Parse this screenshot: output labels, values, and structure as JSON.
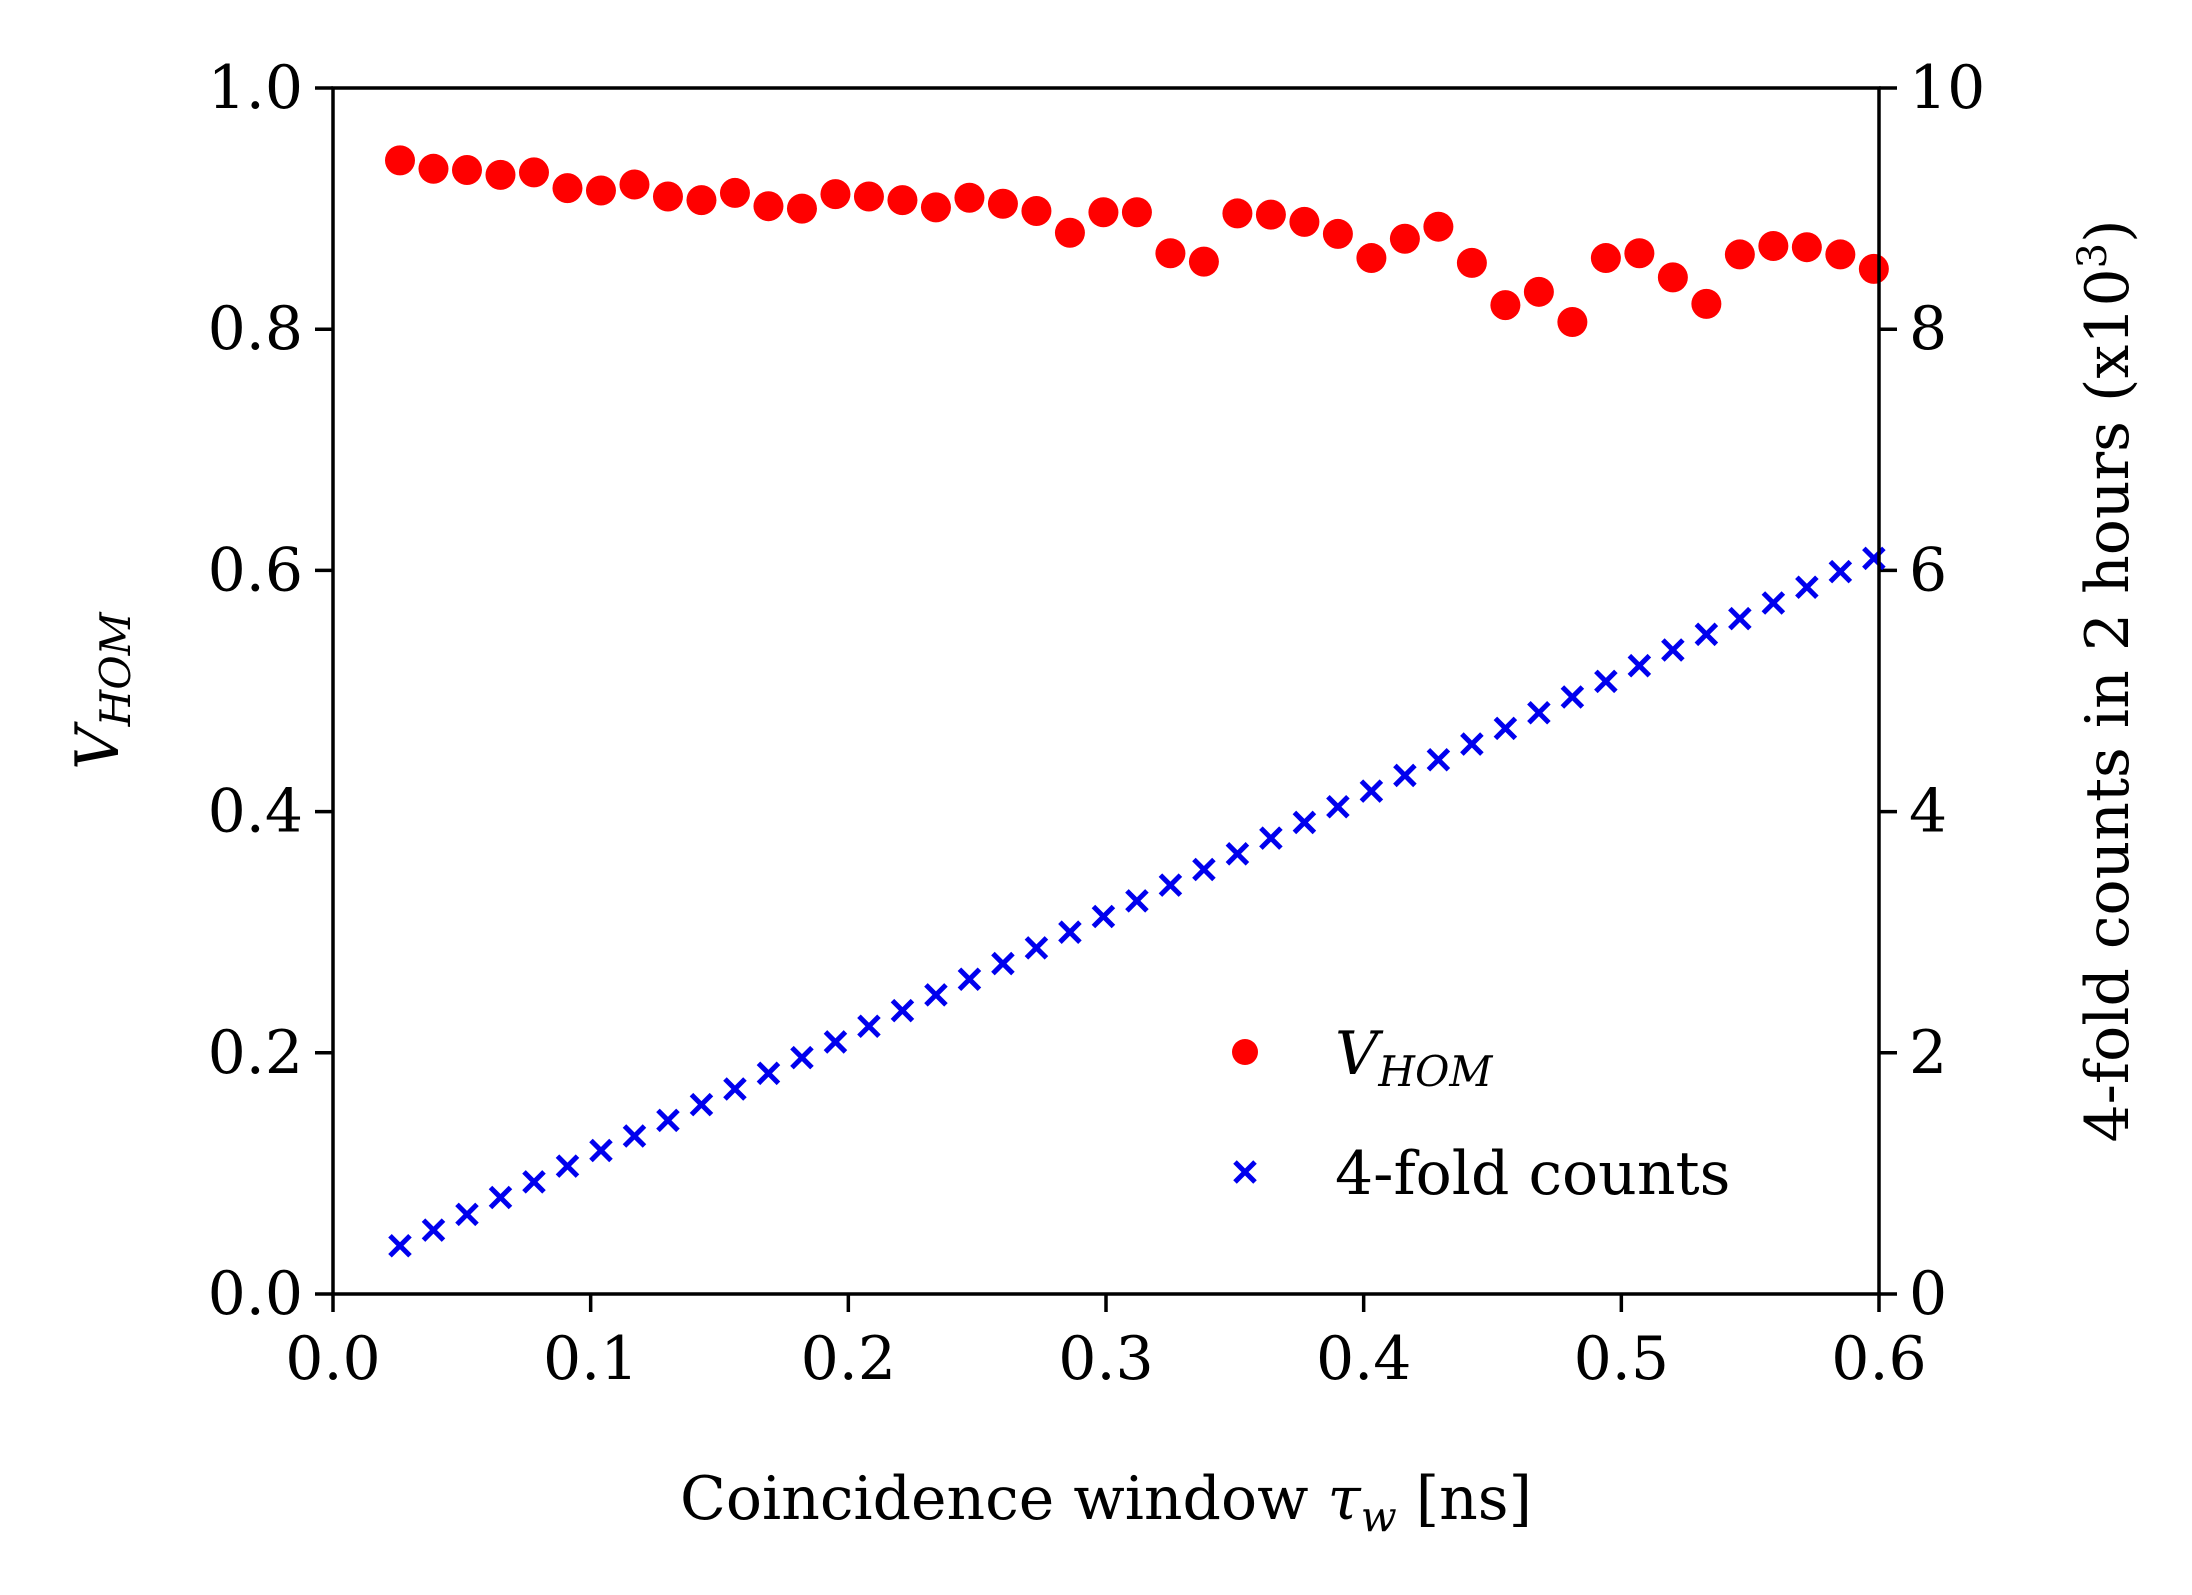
{
  "chart_data": {
    "type": "scatter",
    "xlabel": {
      "prefix": "Coincidence window ",
      "symbol": "τ",
      "subscript": "w",
      "suffix": " [ns]"
    },
    "ylabel_left": {
      "symbol": "V",
      "subscript": "HOM"
    },
    "ylabel_right": {
      "text": "4-fold counts in 2 hours (x10",
      "sup": "3",
      "close": ")"
    },
    "xlim": [
      0.0,
      0.6
    ],
    "ylim_left": [
      0.0,
      1.0
    ],
    "ylim_right": [
      0,
      10
    ],
    "x_ticks": [
      "0.0",
      "0.1",
      "0.2",
      "0.3",
      "0.4",
      "0.5",
      "0.6"
    ],
    "y_left_ticks": [
      "0.0",
      "0.2",
      "0.4",
      "0.6",
      "0.8",
      "1.0"
    ],
    "y_right_ticks": [
      "0",
      "2",
      "4",
      "6",
      "8",
      "10"
    ],
    "legend": {
      "position": "lower-right",
      "entries": [
        {
          "symbol": "V",
          "subscript": "HOM",
          "marker": "circle"
        },
        {
          "text": "4-fold counts",
          "marker": "x"
        }
      ]
    },
    "colors": {
      "vhom": "#ff0000",
      "counts": "#0000ee"
    },
    "series": [
      {
        "name": "V_HOM",
        "axis": "left",
        "x": [
          0.026,
          0.039,
          0.052,
          0.065,
          0.078,
          0.091,
          0.104,
          0.117,
          0.13,
          0.143,
          0.156,
          0.169,
          0.182,
          0.195,
          0.208,
          0.221,
          0.234,
          0.247,
          0.26,
          0.273,
          0.286,
          0.299,
          0.312,
          0.325,
          0.338,
          0.351,
          0.364,
          0.377,
          0.39,
          0.403,
          0.416,
          0.429,
          0.442,
          0.455,
          0.468,
          0.481,
          0.494,
          0.507,
          0.52,
          0.533,
          0.546,
          0.559,
          0.572,
          0.585,
          0.598
        ],
        "values": [
          0.94,
          0.933,
          0.932,
          0.928,
          0.93,
          0.917,
          0.915,
          0.92,
          0.91,
          0.907,
          0.913,
          0.902,
          0.9,
          0.912,
          0.91,
          0.907,
          0.901,
          0.909,
          0.904,
          0.898,
          0.88,
          0.897,
          0.897,
          0.863,
          0.856,
          0.896,
          0.895,
          0.889,
          0.879,
          0.859,
          0.875,
          0.885,
          0.855,
          0.82,
          0.831,
          0.806,
          0.859,
          0.863,
          0.843,
          0.821,
          0.862,
          0.869,
          0.868,
          0.862,
          0.85
        ]
      },
      {
        "name": "4-fold counts",
        "axis": "right",
        "x": [
          0.026,
          0.039,
          0.052,
          0.065,
          0.078,
          0.091,
          0.104,
          0.117,
          0.13,
          0.143,
          0.156,
          0.169,
          0.182,
          0.195,
          0.208,
          0.221,
          0.234,
          0.247,
          0.26,
          0.273,
          0.286,
          0.299,
          0.312,
          0.325,
          0.338,
          0.351,
          0.364,
          0.377,
          0.39,
          0.403,
          0.416,
          0.429,
          0.442,
          0.455,
          0.468,
          0.481,
          0.494,
          0.507,
          0.52,
          0.533,
          0.546,
          0.559,
          0.572,
          0.585,
          0.598
        ],
        "values": [
          0.4,
          0.53,
          0.66,
          0.8,
          0.93,
          1.06,
          1.19,
          1.31,
          1.44,
          1.57,
          1.7,
          1.83,
          1.96,
          2.09,
          2.22,
          2.35,
          2.48,
          2.61,
          2.74,
          2.87,
          3.0,
          3.13,
          3.26,
          3.39,
          3.52,
          3.65,
          3.78,
          3.91,
          4.04,
          4.17,
          4.3,
          4.43,
          4.56,
          4.69,
          4.82,
          4.95,
          5.08,
          5.21,
          5.34,
          5.47,
          5.6,
          5.73,
          5.86,
          5.99,
          6.1
        ]
      }
    ]
  }
}
